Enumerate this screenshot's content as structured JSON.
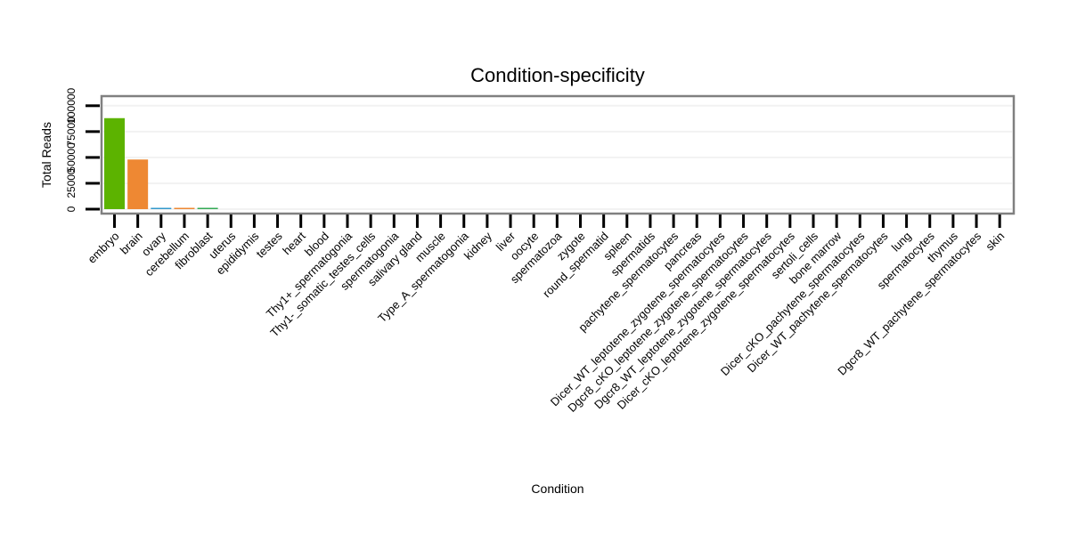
{
  "chart_data": {
    "type": "bar",
    "title": "Condition-specificity",
    "xlabel": "Condition",
    "ylabel": "Total Reads",
    "ylim": [
      0,
      105000
    ],
    "yticks": [
      0,
      25000,
      50000,
      75000,
      100000
    ],
    "ytick_labels": [
      "0",
      "25000",
      "50000",
      "75000",
      "100000"
    ],
    "grid": true,
    "categories": [
      "embryo",
      "brain",
      "ovary",
      "cerebellum",
      "fibroblast",
      "uterus",
      "epididymis",
      "testes",
      "heart",
      "blood",
      "Thy1+_spermatogonia",
      "Thy1-_somatic_testes_cells",
      "spermatogonia",
      "salivary gland",
      "muscle",
      "Type_A_spermatogonia",
      "kidney",
      "liver",
      "oocyte",
      "spermatozoa",
      "zygote",
      "round_spermatid",
      "spleen",
      "spermatids",
      "pachytene_spermatocytes",
      "pancreas",
      "Dicer_WT_leptotene_zygotene_spermatocytes",
      "Dgcr8_cKO_leptotene_zygotene_spermatocytes",
      "Dgcr8_WT_leptotene_zygotene_spermatocytes",
      "Dicer_cKO_leptotene_zygotene_spermatocytes",
      "sertoli_cells",
      "bone marrow",
      "Dicer_cKO_pachytene_spermatocytes",
      "Dicer_WT_pachytene_spermatocytes",
      "lung",
      "spermatocytes",
      "thymus",
      "Dgcr8_WT_pachytene_spermatocytes",
      "skin"
    ],
    "values": [
      88000,
      48000,
      600,
      700,
      800,
      0,
      0,
      0,
      0,
      0,
      0,
      0,
      0,
      0,
      0,
      0,
      0,
      0,
      0,
      0,
      0,
      0,
      0,
      0,
      0,
      0,
      0,
      0,
      0,
      0,
      0,
      0,
      0,
      0,
      0,
      0,
      0,
      0,
      0
    ],
    "bar_colors": [
      "#5cb300",
      "#ee8833",
      "#3399cc",
      "#ee8833",
      "#33aa55"
    ]
  }
}
